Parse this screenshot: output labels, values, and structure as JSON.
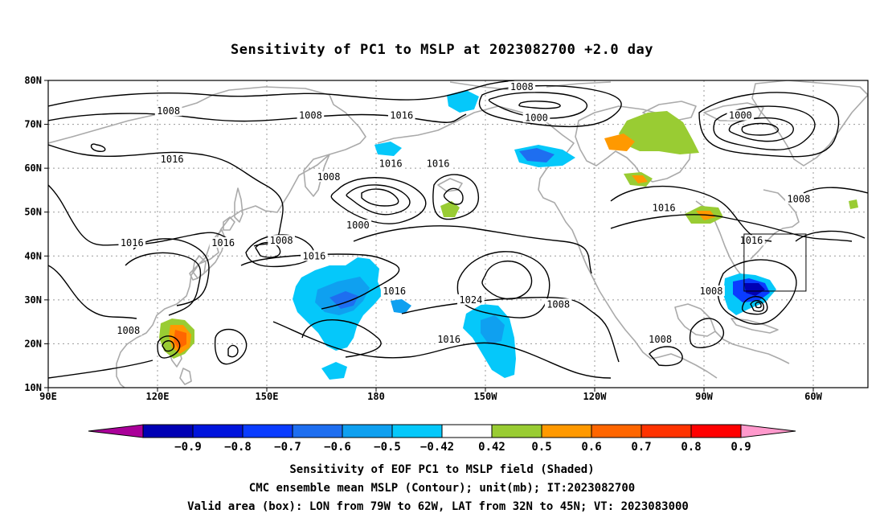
{
  "title": "Sensitivity of PC1 to MSLP at 2023082700 +2.0 day",
  "lat_ticks": [
    "80N",
    "70N",
    "60N",
    "50N",
    "40N",
    "30N",
    "20N",
    "10N"
  ],
  "lon_ticks": [
    "90E",
    "120E",
    "150E",
    "180",
    "150W",
    "120W",
    "90W",
    "60W"
  ],
  "contour_labels": [
    {
      "text": "1008",
      "lon": 123,
      "lat": 73
    },
    {
      "text": "1008",
      "lon": 162,
      "lat": 72
    },
    {
      "text": "1016",
      "lon": 187,
      "lat": 72
    },
    {
      "text": "1008",
      "lon": 220,
      "lat": 78.5
    },
    {
      "text": "1000",
      "lon": 224,
      "lat": 71.5
    },
    {
      "text": "1000",
      "lon": 280,
      "lat": 72
    },
    {
      "text": "1016",
      "lon": 124,
      "lat": 62
    },
    {
      "text": "1008",
      "lon": 167,
      "lat": 58
    },
    {
      "text": "1016",
      "lon": 184,
      "lat": 61
    },
    {
      "text": "1016",
      "lon": 197,
      "lat": 61
    },
    {
      "text": "1000",
      "lon": 175,
      "lat": 47
    },
    {
      "text": "1008",
      "lon": 296,
      "lat": 53
    },
    {
      "text": "1016",
      "lon": 259,
      "lat": 51
    },
    {
      "text": "1016",
      "lon": 113,
      "lat": 43
    },
    {
      "text": "1016",
      "lon": 138,
      "lat": 43
    },
    {
      "text": "1008",
      "lon": 154,
      "lat": 43.5
    },
    {
      "text": "1016",
      "lon": 163,
      "lat": 40
    },
    {
      "text": "1016",
      "lon": 185,
      "lat": 32
    },
    {
      "text": "1024",
      "lon": 206,
      "lat": 30
    },
    {
      "text": "1008",
      "lon": 230,
      "lat": 29
    },
    {
      "text": "1008",
      "lon": 272,
      "lat": 32
    },
    {
      "text": "1016",
      "lon": 283,
      "lat": 43.5
    },
    {
      "text": "1008",
      "lon": 112,
      "lat": 23
    },
    {
      "text": "1016",
      "lon": 200,
      "lat": 21
    },
    {
      "text": "1008",
      "lon": 258,
      "lat": 21
    }
  ],
  "colorbar": {
    "labels": [
      "-0.9",
      "-0.8",
      "-0.7",
      "-0.6",
      "-0.5",
      "-0.42",
      "0.42",
      "0.5",
      "0.6",
      "0.7",
      "0.8",
      "0.9"
    ],
    "colors": [
      "#aa0099",
      "#0000b4",
      "#0014dc",
      "#0a3cff",
      "#1e6ef0",
      "#0fa0f0",
      "#05c8fa",
      "#ffffff",
      "#99cc33",
      "#ff9900",
      "#ff6600",
      "#ff3300",
      "#ff0000",
      "#ff99cc"
    ]
  },
  "valid_box": {
    "lon_w": 79,
    "lon_e": 62,
    "lat_s": 32,
    "lat_n": 45
  },
  "captions": [
    "Sensitivity of EOF PC1 to MSLP field (Shaded)",
    "CMC ensemble mean MSLP (Contour); unit(mb); IT:2023082700",
    "Valid area (box): LON from 79W to 62W, LAT from 32N to 45N; VT: 2023083000"
  ]
}
